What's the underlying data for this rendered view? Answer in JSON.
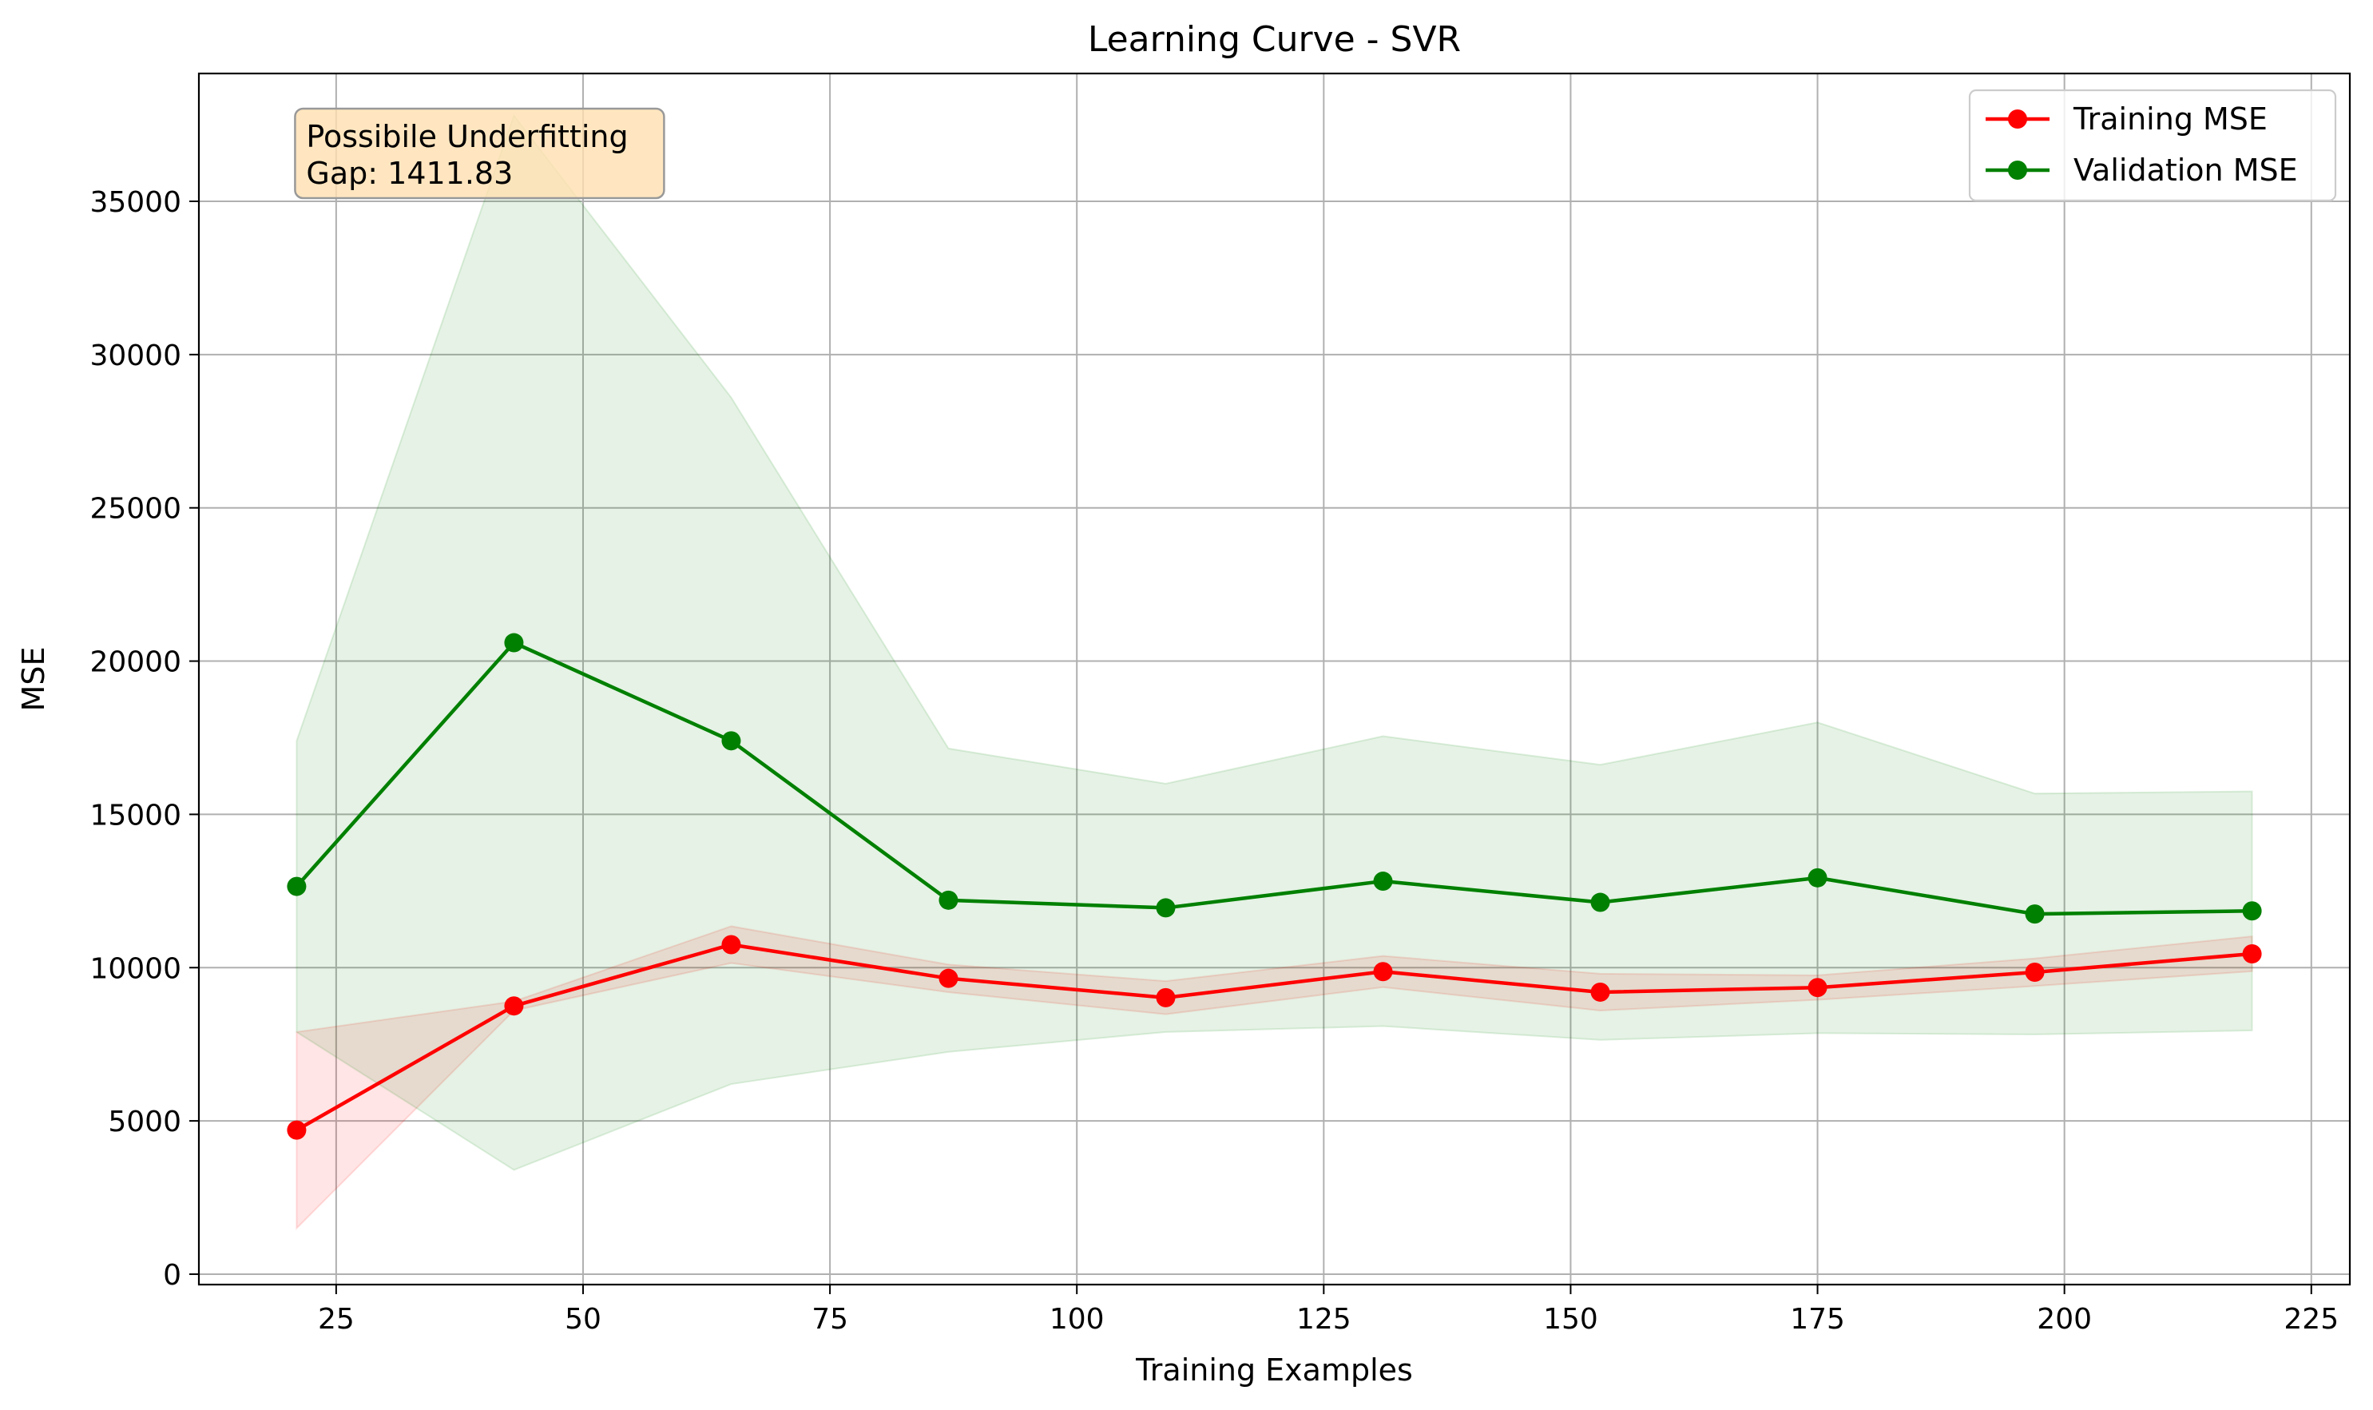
{
  "chart_data": {
    "type": "line",
    "title": "Learning Curve - SVR",
    "xlabel": "Training Examples",
    "ylabel": "MSE",
    "xlim": [
      11.1,
      228.9
    ],
    "ylim": [
      -340,
      39170
    ],
    "xticks": [
      25,
      50,
      75,
      100,
      125,
      150,
      175,
      200,
      225
    ],
    "yticks": [
      0,
      5000,
      10000,
      15000,
      20000,
      25000,
      30000,
      35000
    ],
    "grid": true,
    "legend_position": "top-right",
    "x": [
      21,
      43,
      65,
      87,
      109,
      131,
      153,
      175,
      197,
      219
    ],
    "series": [
      {
        "name": "Training MSE",
        "color": "#ff0000",
        "marker": "circle",
        "values": [
          4700,
          8750,
          10750,
          9650,
          9020,
          9870,
          9200,
          9350,
          9850,
          10450
        ],
        "band_upper": [
          7900,
          8900,
          11350,
          10100,
          9560,
          10380,
          9800,
          9750,
          10300,
          11020
        ],
        "band_lower": [
          1500,
          8600,
          10150,
          9200,
          8480,
          9360,
          8600,
          8950,
          9400,
          9880
        ]
      },
      {
        "name": "Validation MSE",
        "color": "#008000",
        "marker": "circle",
        "values": [
          12650,
          20600,
          17400,
          12200,
          11950,
          12820,
          12130,
          12930,
          11750,
          11850
        ],
        "band_upper": [
          17400,
          37800,
          28600,
          17150,
          16000,
          17550,
          16620,
          18000,
          15680,
          15750
        ],
        "band_lower": [
          7900,
          3400,
          6200,
          7250,
          7900,
          8090,
          7640,
          7860,
          7820,
          7950
        ]
      }
    ],
    "annotation": {
      "lines": [
        "Possibile Underfitting",
        "Gap: 1411.83"
      ],
      "box_color": "#ffe0b0",
      "anchor_x": 21,
      "anchor_y": 37450
    }
  }
}
